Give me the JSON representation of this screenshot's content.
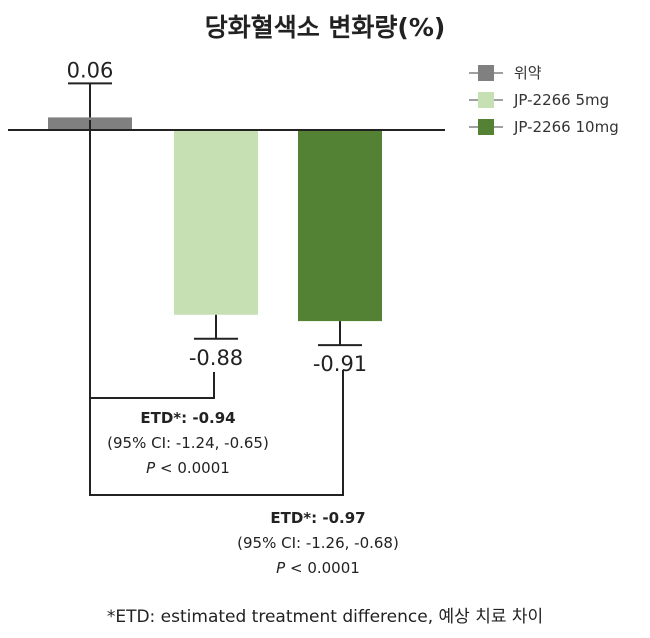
{
  "chart_data": {
    "type": "bar",
    "title": "당화혈색소 변화량(%)",
    "categories": [
      "위약",
      "JP-2266 5mg",
      "JP-2266 10mg"
    ],
    "series": [
      {
        "name": "위약",
        "value": 0.06,
        "value_label": "0.06",
        "color": "#808080"
      },
      {
        "name": "JP-2266 5mg",
        "value": -0.88,
        "value_label": "-0.88",
        "color": "#c6e0b4"
      },
      {
        "name": "JP-2266 10mg",
        "value": -0.91,
        "value_label": "-0.91",
        "color": "#548235"
      }
    ],
    "ylim": [
      -1.1,
      0.2
    ],
    "grid": false,
    "legend_position": "top-right",
    "annotations": [
      {
        "label": "ETD*:",
        "value": "-0.94",
        "ci": "(95% CI: -1.24, -0.65)",
        "p_symbol": "P",
        "p_rest": " < 0.0001"
      },
      {
        "label": "ETD*:",
        "value": "-0.97",
        "ci": "(95% CI: -1.26, -0.68)",
        "p_symbol": "P",
        "p_rest": " < 0.0001"
      }
    ],
    "footnote": "*ETD: estimated treatment difference, 예상 치료 차이"
  }
}
